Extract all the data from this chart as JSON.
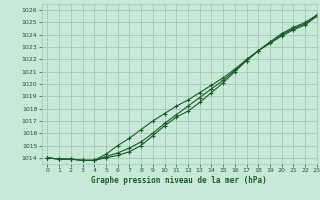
{
  "title": "Graphe pression niveau de la mer (hPa)",
  "bg_color": "#c8e8d8",
  "grid_color": "#a0c8b8",
  "line_color": "#1a5c28",
  "xlim": [
    -0.5,
    23
  ],
  "ylim": [
    1013.5,
    1026.5
  ],
  "yticks": [
    1014,
    1015,
    1016,
    1017,
    1018,
    1019,
    1020,
    1021,
    1022,
    1023,
    1024,
    1025,
    1026
  ],
  "xticks": [
    0,
    1,
    2,
    3,
    4,
    5,
    6,
    7,
    8,
    9,
    10,
    11,
    12,
    13,
    14,
    15,
    16,
    17,
    18,
    19,
    20,
    21,
    22,
    23
  ],
  "line1_x": [
    0,
    1,
    2,
    3,
    4,
    5,
    6,
    7,
    8,
    9,
    10,
    11,
    12,
    13,
    14,
    15,
    16,
    17,
    18,
    19,
    20,
    21,
    22,
    23
  ],
  "line1_y": [
    1014.0,
    1013.9,
    1013.9,
    1013.8,
    1013.8,
    1014.0,
    1014.2,
    1014.5,
    1015.0,
    1015.8,
    1016.6,
    1017.3,
    1017.8,
    1018.5,
    1019.3,
    1020.1,
    1021.0,
    1021.9,
    1022.7,
    1023.4,
    1024.1,
    1024.6,
    1025.0,
    1025.6
  ],
  "line2_x": [
    0,
    1,
    2,
    3,
    4,
    5,
    6,
    7,
    8,
    9,
    10,
    11,
    12,
    13,
    14,
    15,
    16,
    17,
    18,
    19,
    20,
    21,
    22,
    23
  ],
  "line2_y": [
    1014.0,
    1013.9,
    1013.9,
    1013.8,
    1013.8,
    1014.3,
    1015.0,
    1015.6,
    1016.3,
    1017.0,
    1017.6,
    1018.2,
    1018.7,
    1019.3,
    1019.9,
    1020.5,
    1021.2,
    1022.0,
    1022.7,
    1023.3,
    1023.9,
    1024.4,
    1024.8,
    1025.5
  ],
  "line3_x": [
    0,
    1,
    2,
    3,
    4,
    5,
    6,
    7,
    8,
    9,
    10,
    11,
    12,
    13,
    14,
    15,
    16,
    17,
    18,
    19,
    20,
    21,
    22,
    23
  ],
  "line3_y": [
    1014.0,
    1013.9,
    1013.9,
    1013.8,
    1013.8,
    1014.1,
    1014.4,
    1014.8,
    1015.3,
    1016.0,
    1016.8,
    1017.5,
    1018.2,
    1018.9,
    1019.6,
    1020.3,
    1021.1,
    1021.9,
    1022.7,
    1023.4,
    1024.0,
    1024.5,
    1024.9,
    1025.6
  ]
}
